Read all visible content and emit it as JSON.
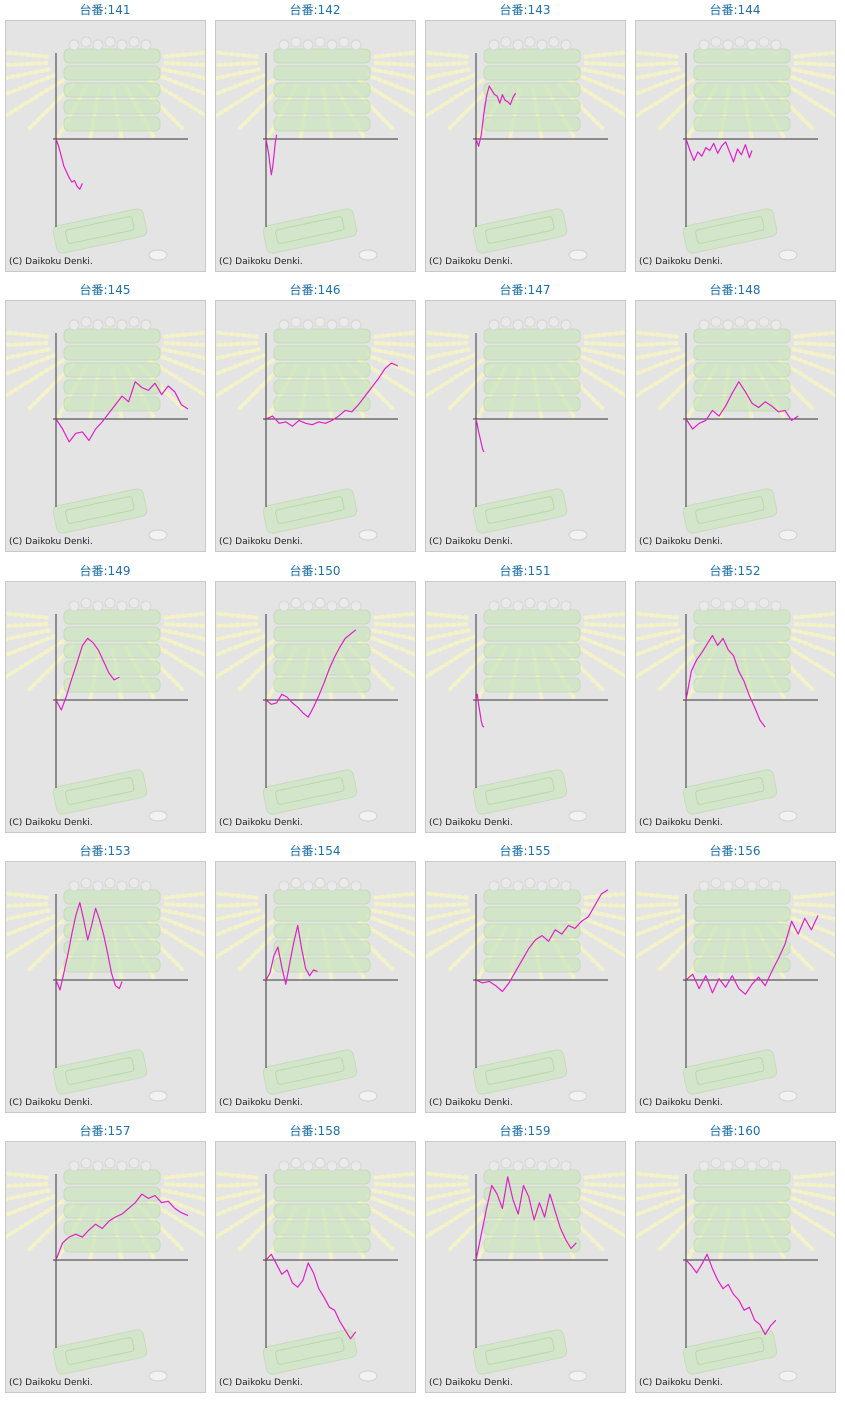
{
  "page": {
    "background": "#ffffff"
  },
  "style": {
    "title_color": "#1f6fa8",
    "line_color": "#e020c8",
    "axis_color": "#333333",
    "panel_bg": "#e4e4e4",
    "art_green": "#cde6c0",
    "art_ray": "#f3f2c8"
  },
  "copyright": "(C) Daikoku Denki.",
  "chart_data": [
    {
      "type": "line",
      "title": "台番:141",
      "x": [
        0,
        2,
        4,
        6,
        8,
        10,
        12,
        14,
        16,
        18,
        20
      ],
      "values": [
        0,
        -500,
        -1200,
        -1900,
        -2300,
        -2700,
        -3000,
        -2900,
        -3300,
        -3500,
        -3100
      ]
    },
    {
      "type": "line",
      "title": "台番:142",
      "x": [
        0,
        1,
        2,
        3,
        4,
        5,
        6,
        7,
        8
      ],
      "values": [
        0,
        -500,
        -1000,
        -1800,
        -2500,
        -2000,
        -1200,
        -300,
        300
      ]
    },
    {
      "type": "line",
      "title": "台番:143",
      "x": [
        0,
        2,
        4,
        6,
        8,
        10,
        12,
        14,
        16,
        18,
        20,
        22,
        24,
        26,
        28,
        30
      ],
      "values": [
        0,
        -500,
        300,
        1800,
        3000,
        3700,
        3400,
        3100,
        3000,
        2500,
        3100,
        2700,
        2600,
        2400,
        2900,
        3200
      ]
    },
    {
      "type": "line",
      "title": "台番:144",
      "x": [
        0,
        3,
        6,
        9,
        12,
        15,
        18,
        21,
        24,
        27,
        30,
        33,
        36,
        39,
        42,
        45,
        48,
        50
      ],
      "values": [
        0,
        -800,
        -1500,
        -900,
        -1200,
        -600,
        -800,
        -300,
        -1000,
        -500,
        -200,
        -900,
        -1600,
        -700,
        -1100,
        -400,
        -1300,
        -800
      ]
    },
    {
      "type": "line",
      "title": "台番:145",
      "x": [
        0,
        5,
        10,
        15,
        20,
        25,
        30,
        35,
        40,
        45,
        50,
        55,
        60,
        65,
        70,
        75,
        80,
        85,
        90,
        95,
        100
      ],
      "values": [
        0,
        -700,
        -1600,
        -1000,
        -900,
        -1500,
        -700,
        -200,
        400,
        1000,
        1600,
        1200,
        2600,
        2200,
        2000,
        2500,
        1700,
        2300,
        1900,
        1000,
        700
      ]
    },
    {
      "type": "line",
      "title": "台番:146",
      "x": [
        0,
        5,
        10,
        15,
        20,
        25,
        30,
        35,
        40,
        45,
        50,
        55,
        60,
        65,
        70,
        75,
        80,
        85,
        90,
        95,
        100
      ],
      "values": [
        0,
        200,
        -300,
        -200,
        -500,
        -100,
        -300,
        -400,
        -200,
        -300,
        -100,
        200,
        600,
        500,
        1000,
        1600,
        2200,
        2800,
        3500,
        3900,
        3700
      ]
    },
    {
      "type": "line",
      "title": "台番:147",
      "x": [
        0,
        1,
        2,
        3,
        4,
        5,
        6
      ],
      "values": [
        0,
        -400,
        -900,
        -1300,
        -1700,
        -2100,
        -2300
      ]
    },
    {
      "type": "line",
      "title": "台番:148",
      "x": [
        0,
        5,
        10,
        15,
        20,
        25,
        30,
        35,
        40,
        45,
        50,
        55,
        60,
        65,
        70,
        75,
        80,
        85
      ],
      "values": [
        0,
        -700,
        -300,
        -100,
        600,
        200,
        900,
        1800,
        2600,
        1900,
        1100,
        800,
        1200,
        900,
        500,
        600,
        -100,
        200
      ]
    },
    {
      "type": "line",
      "title": "台番:149",
      "x": [
        0,
        4,
        8,
        12,
        16,
        20,
        24,
        28,
        32,
        36,
        40,
        44,
        48
      ],
      "values": [
        0,
        -700,
        300,
        1500,
        2600,
        3800,
        4300,
        4000,
        3500,
        2700,
        1900,
        1400,
        1600
      ]
    },
    {
      "type": "line",
      "title": "台番:150",
      "x": [
        0,
        4,
        8,
        12,
        16,
        20,
        24,
        28,
        32,
        36,
        40,
        44,
        48,
        52,
        56,
        60,
        64,
        68
      ],
      "values": [
        0,
        -300,
        -200,
        400,
        200,
        -200,
        -500,
        -900,
        -1200,
        -500,
        300,
        1200,
        2200,
        3000,
        3700,
        4300,
        4600,
        4900
      ]
    },
    {
      "type": "line",
      "title": "台番:151",
      "x": [
        0,
        1,
        2,
        3,
        4,
        5,
        6
      ],
      "values": [
        0,
        400,
        -300,
        -900,
        -1500,
        -1800,
        -1900
      ]
    },
    {
      "type": "line",
      "title": "台番:152",
      "x": [
        0,
        4,
        8,
        12,
        16,
        20,
        24,
        28,
        32,
        36,
        40,
        44,
        48,
        52,
        56,
        60
      ],
      "values": [
        0,
        2000,
        2800,
        3300,
        3900,
        4500,
        3800,
        4300,
        3500,
        3100,
        2000,
        1300,
        300,
        -500,
        -1400,
        -1900
      ]
    },
    {
      "type": "line",
      "title": "台番:153",
      "x": [
        0,
        3,
        6,
        9,
        12,
        15,
        18,
        21,
        24,
        27,
        30,
        33,
        36,
        39,
        42,
        45,
        48,
        50
      ],
      "values": [
        0,
        -700,
        500,
        1800,
        3200,
        4500,
        5400,
        4200,
        2800,
        3800,
        5000,
        4200,
        3200,
        1900,
        500,
        -400,
        -600,
        -100
      ]
    },
    {
      "type": "line",
      "title": "台番:154",
      "x": [
        0,
        3,
        6,
        9,
        12,
        15,
        18,
        21,
        24,
        27,
        30,
        33,
        36,
        39
      ],
      "values": [
        0,
        500,
        1700,
        2300,
        900,
        -300,
        1200,
        2600,
        3800,
        2200,
        800,
        300,
        700,
        600
      ]
    },
    {
      "type": "line",
      "title": "台番:155",
      "x": [
        0,
        5,
        10,
        15,
        20,
        25,
        30,
        35,
        40,
        45,
        50,
        55,
        60,
        65,
        70,
        75,
        80,
        85,
        90,
        95,
        100
      ],
      "values": [
        0,
        -200,
        -100,
        -400,
        -800,
        -200,
        600,
        1400,
        2200,
        2800,
        3100,
        2700,
        3500,
        3200,
        3800,
        3600,
        4100,
        4400,
        5200,
        6000,
        6300
      ]
    },
    {
      "type": "line",
      "title": "台番:156",
      "x": [
        0,
        5,
        10,
        15,
        20,
        25,
        30,
        35,
        40,
        45,
        50,
        55,
        60,
        65,
        70,
        75,
        80,
        85,
        90,
        95,
        100
      ],
      "values": [
        0,
        400,
        -600,
        300,
        -900,
        100,
        -500,
        300,
        -600,
        -1000,
        -300,
        200,
        -400,
        600,
        1500,
        2500,
        4100,
        3200,
        4300,
        3500,
        4500
      ]
    },
    {
      "type": "line",
      "title": "台番:157",
      "x": [
        0,
        5,
        10,
        15,
        20,
        25,
        30,
        35,
        40,
        45,
        50,
        55,
        60,
        65,
        70,
        75,
        80,
        85,
        90,
        95,
        100
      ],
      "values": [
        0,
        1200,
        1600,
        1800,
        1600,
        2100,
        2500,
        2200,
        2700,
        3000,
        3200,
        3600,
        4000,
        4600,
        4300,
        4500,
        4000,
        4100,
        3600,
        3300,
        3100
      ]
    },
    {
      "type": "line",
      "title": "台番:158",
      "x": [
        0,
        4,
        8,
        12,
        16,
        20,
        24,
        28,
        32,
        36,
        40,
        44,
        48,
        52,
        56,
        60,
        64,
        68
      ],
      "values": [
        0,
        400,
        -300,
        -1000,
        -700,
        -1600,
        -1900,
        -1400,
        -200,
        -900,
        -2000,
        -2600,
        -3300,
        -3500,
        -4300,
        -4900,
        -5500,
        -5000
      ]
    },
    {
      "type": "line",
      "title": "台番:159",
      "x": [
        0,
        4,
        8,
        12,
        16,
        20,
        24,
        28,
        32,
        36,
        40,
        44,
        48,
        52,
        56,
        60,
        64,
        68,
        72,
        76
      ],
      "values": [
        0,
        1800,
        3600,
        5200,
        4600,
        3600,
        5800,
        4200,
        3200,
        5200,
        4400,
        2800,
        4000,
        3000,
        4600,
        3400,
        2200,
        1400,
        800,
        1200
      ]
    },
    {
      "type": "line",
      "title": "台番:160",
      "x": [
        0,
        4,
        8,
        12,
        16,
        20,
        24,
        28,
        32,
        36,
        40,
        44,
        48,
        52,
        56,
        60,
        64,
        68
      ],
      "values": [
        0,
        -400,
        -900,
        -300,
        400,
        -600,
        -1400,
        -2000,
        -1700,
        -2400,
        -2800,
        -3500,
        -3300,
        -4200,
        -4500,
        -5200,
        -4600,
        -4200
      ]
    }
  ]
}
